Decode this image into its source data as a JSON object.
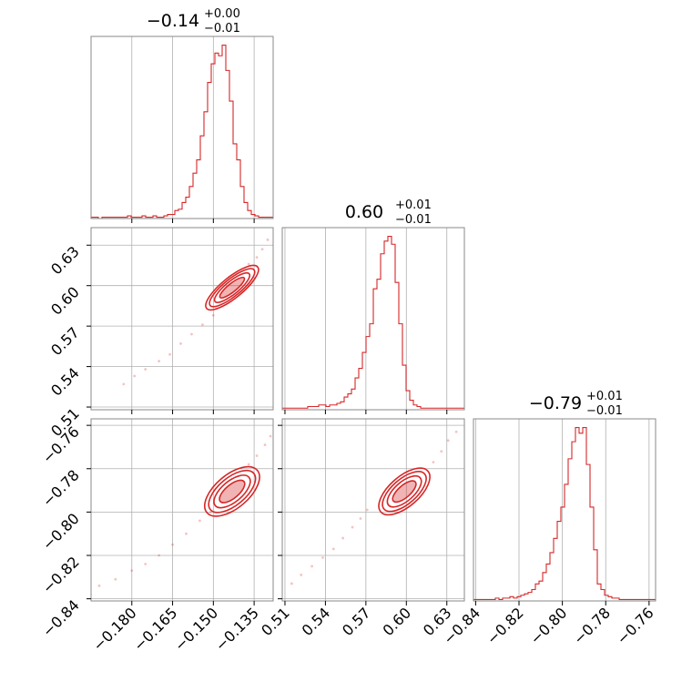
{
  "chart_data": {
    "type": "corner",
    "color": "#d62728",
    "grid": true,
    "parameters": [
      {
        "median": "−0.14",
        "plus": "+0.00",
        "minus": "−0.01",
        "range": [
          -0.195,
          -0.128
        ],
        "ticks": [
          -0.18,
          -0.165,
          -0.15,
          -0.135
        ],
        "tick_labels": [
          "−0.180",
          "−0.165",
          "−0.150",
          "−0.135"
        ]
      },
      {
        "median": "0.60",
        "plus": "+0.01",
        "minus": "−0.01",
        "range": [
          0.508,
          0.643
        ],
        "ticks": [
          0.51,
          0.54,
          0.57,
          0.6,
          0.63
        ],
        "tick_labels": [
          "0.51",
          "0.54",
          "0.57",
          "0.60",
          "0.63"
        ]
      },
      {
        "median": "−0.79",
        "plus": "+0.01",
        "minus": "−0.01",
        "range": [
          -0.841,
          -0.757
        ],
        "ticks": [
          -0.84,
          -0.82,
          -0.8,
          -0.78,
          -0.76
        ],
        "tick_labels": [
          "−0.84",
          "−0.82",
          "−0.80",
          "−0.78",
          "−0.76"
        ]
      }
    ],
    "histograms": [
      {
        "param": 0,
        "bin_start": -0.195,
        "bin_width": 0.00134,
        "counts": [
          1,
          1,
          0,
          1,
          1,
          1,
          1,
          1,
          1,
          1,
          2,
          1,
          1,
          1,
          2,
          1,
          1,
          2,
          1,
          1,
          2,
          3,
          3,
          6,
          7,
          12,
          16,
          24,
          34,
          44,
          62,
          80,
          102,
          116,
          124,
          122,
          130,
          111,
          88,
          56,
          44,
          24,
          12,
          6,
          3,
          2,
          1,
          1,
          1,
          1
        ]
      },
      {
        "param": 1,
        "bin_start": 0.508,
        "bin_width": 0.0027,
        "counts": [
          1,
          1,
          1,
          1,
          1,
          1,
          1,
          2,
          2,
          2,
          3,
          3,
          2,
          3,
          3,
          4,
          5,
          8,
          10,
          13,
          20,
          26,
          36,
          46,
          54,
          76,
          82,
          98,
          106,
          109,
          104,
          80,
          54,
          28,
          12,
          6,
          3,
          2,
          1,
          1,
          1,
          1,
          1,
          1,
          1,
          1,
          1,
          1,
          1,
          1
        ]
      },
      {
        "param": 2,
        "bin_start": -0.841,
        "bin_width": 0.00168,
        "counts": [
          1,
          1,
          1,
          1,
          1,
          1,
          2,
          1,
          2,
          2,
          3,
          2,
          3,
          4,
          5,
          6,
          8,
          12,
          14,
          20,
          26,
          34,
          44,
          56,
          66,
          82,
          100,
          112,
          122,
          118,
          122,
          96,
          66,
          36,
          12,
          8,
          4,
          3,
          2,
          2,
          1,
          1,
          1,
          1,
          1,
          1,
          1,
          1,
          1,
          1
        ]
      }
    ],
    "pairs": [
      {
        "x": 0,
        "y": 1,
        "contours": [
          {
            "cx": -0.1431,
            "cy": 0.5985,
            "rx": 0.0057,
            "ry": 0.0031,
            "angle_deg": 39
          },
          {
            "cx": -0.1431,
            "cy": 0.5985,
            "rx": 0.0081,
            "ry": 0.0048,
            "angle_deg": 39
          },
          {
            "cx": -0.1431,
            "cy": 0.5985,
            "rx": 0.0104,
            "ry": 0.0063,
            "angle_deg": 39
          },
          {
            "cx": -0.1431,
            "cy": 0.5985,
            "rx": 0.0121,
            "ry": 0.0077,
            "angle_deg": 39
          }
        ],
        "tail": [
          [
            -0.183,
            0.527
          ],
          [
            -0.179,
            0.533
          ],
          [
            -0.175,
            0.538
          ],
          [
            -0.17,
            0.544
          ],
          [
            -0.166,
            0.549
          ],
          [
            -0.162,
            0.557
          ],
          [
            -0.158,
            0.564
          ],
          [
            -0.154,
            0.571
          ],
          [
            -0.15,
            0.578
          ],
          [
            -0.137,
            0.616
          ],
          [
            -0.134,
            0.621
          ],
          [
            -0.132,
            0.627
          ],
          [
            -0.13,
            0.634
          ]
        ]
      },
      {
        "x": 0,
        "y": 2,
        "contours": [
          {
            "cx": -0.1431,
            "cy": -0.7905,
            "rx": 0.0057,
            "ry": 0.0031,
            "angle_deg": 40
          },
          {
            "cx": -0.1431,
            "cy": -0.7905,
            "rx": 0.0081,
            "ry": 0.0048,
            "angle_deg": 40
          },
          {
            "cx": -0.1431,
            "cy": -0.7905,
            "rx": 0.0104,
            "ry": 0.0063,
            "angle_deg": 40
          },
          {
            "cx": -0.1431,
            "cy": -0.7905,
            "rx": 0.0121,
            "ry": 0.0077,
            "angle_deg": 40
          }
        ],
        "tail": [
          [
            -0.192,
            -0.834
          ],
          [
            -0.186,
            -0.831
          ],
          [
            -0.18,
            -0.827
          ],
          [
            -0.175,
            -0.824
          ],
          [
            -0.17,
            -0.82
          ],
          [
            -0.165,
            -0.815
          ],
          [
            -0.16,
            -0.81
          ],
          [
            -0.155,
            -0.804
          ],
          [
            -0.151,
            -0.8
          ],
          [
            -0.137,
            -0.778
          ],
          [
            -0.134,
            -0.774
          ],
          [
            -0.131,
            -0.769
          ],
          [
            -0.129,
            -0.765
          ]
        ]
      },
      {
        "x": 1,
        "y": 2,
        "contours": [
          {
            "cx": 0.5985,
            "cy": -0.7905,
            "rx": 0.0108,
            "ry": 0.0028,
            "angle_deg": 41
          },
          {
            "cx": 0.5985,
            "cy": -0.7905,
            "rx": 0.0155,
            "ry": 0.0044,
            "angle_deg": 41
          },
          {
            "cx": 0.5985,
            "cy": -0.7905,
            "rx": 0.0199,
            "ry": 0.0057,
            "angle_deg": 41
          },
          {
            "cx": 0.5985,
            "cy": -0.7905,
            "rx": 0.0231,
            "ry": 0.0069,
            "angle_deg": 41
          }
        ],
        "tail": [
          [
            0.515,
            -0.833
          ],
          [
            0.522,
            -0.829
          ],
          [
            0.53,
            -0.825
          ],
          [
            0.538,
            -0.821
          ],
          [
            0.546,
            -0.817
          ],
          [
            0.553,
            -0.812
          ],
          [
            0.56,
            -0.807
          ],
          [
            0.566,
            -0.803
          ],
          [
            0.571,
            -0.799
          ],
          [
            0.62,
            -0.777
          ],
          [
            0.626,
            -0.772
          ],
          [
            0.631,
            -0.767
          ],
          [
            0.637,
            -0.763
          ]
        ]
      }
    ]
  }
}
